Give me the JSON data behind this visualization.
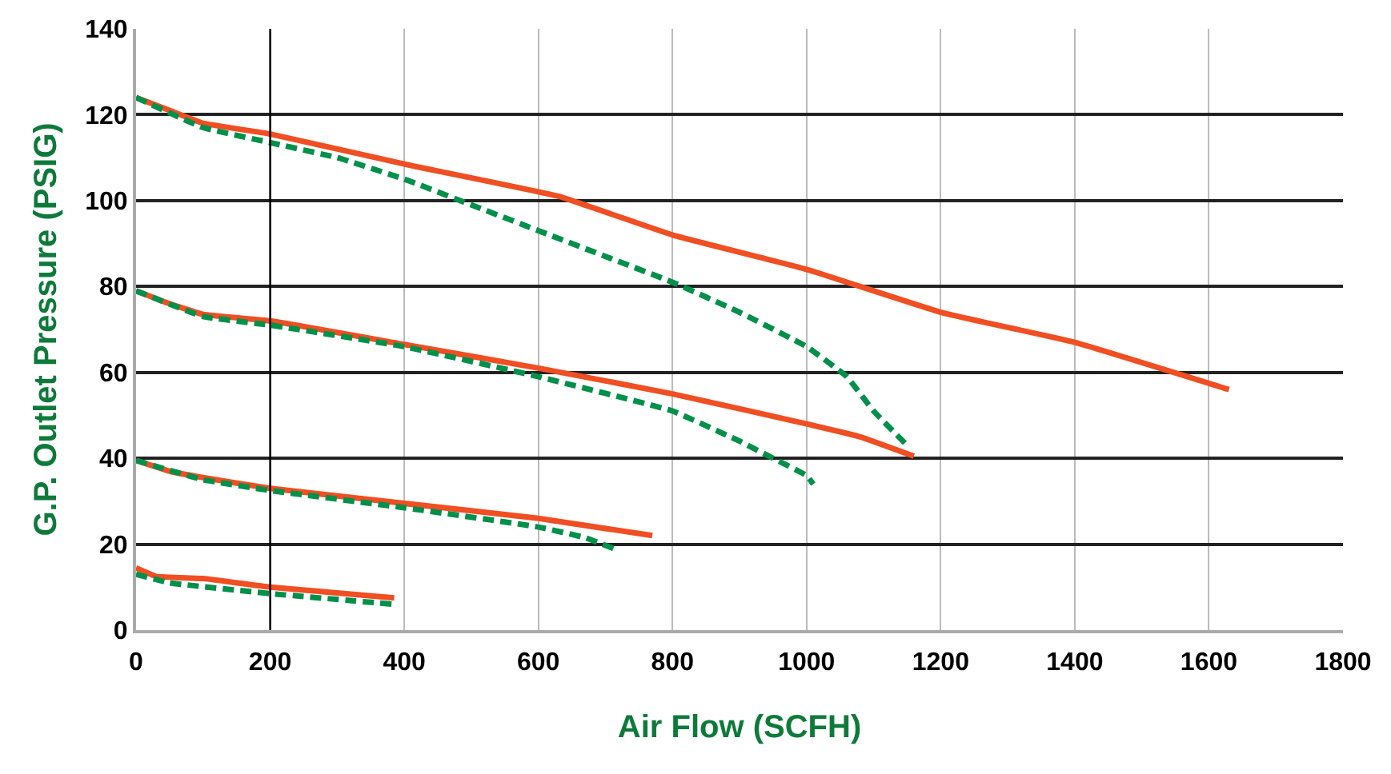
{
  "chart_data": {
    "type": "line",
    "xlabel": "Air Flow (SCFH)",
    "ylabel": "G.P. Outlet Pressure (PSIG)",
    "xlim": [
      0,
      1800
    ],
    "xticks": [
      0,
      200,
      400,
      600,
      800,
      1000,
      1200,
      1400,
      1600,
      1800
    ],
    "ylim": [
      0,
      140
    ],
    "yticks": [
      0,
      20,
      40,
      60,
      80,
      100,
      120,
      140
    ],
    "grid": true,
    "marker": "none",
    "ref_lines": [
      {
        "axis": "x",
        "value": 200,
        "color": "#000000"
      }
    ],
    "series": [
      {
        "color": "#f04e23",
        "line_style": "solid",
        "x": [
          0,
          50,
          100,
          200,
          400,
          630,
          800,
          1000,
          1200,
          1400,
          1630
        ],
        "values": [
          124,
          121,
          118,
          115.5,
          108.5,
          101,
          92,
          84,
          74,
          67,
          56
        ]
      },
      {
        "color": "#00904a",
        "line_style": "dashed",
        "x": [
          0,
          100,
          200,
          300,
          400,
          500,
          600,
          700,
          800,
          900,
          1000,
          1060,
          1100,
          1150
        ],
        "values": [
          124,
          117,
          113.5,
          110,
          105,
          99,
          93,
          87,
          81,
          74,
          66,
          59,
          51,
          43
        ]
      },
      {
        "color": "#f04e23",
        "line_style": "solid",
        "x": [
          0,
          50,
          100,
          200,
          400,
          600,
          800,
          1000,
          1080,
          1160
        ],
        "values": [
          79,
          76,
          73.5,
          72,
          66.5,
          61,
          55,
          48,
          45,
          40.5
        ]
      },
      {
        "color": "#00904a",
        "line_style": "dashed",
        "x": [
          0,
          100,
          200,
          400,
          600,
          800,
          900,
          950,
          1000,
          1010
        ],
        "values": [
          79,
          73,
          71,
          66,
          59,
          51,
          44,
          40,
          36,
          34
        ]
      },
      {
        "color": "#f04e23",
        "line_style": "solid",
        "x": [
          0,
          50,
          100,
          200,
          400,
          600,
          770
        ],
        "values": [
          39.5,
          37,
          35.5,
          33,
          29.5,
          26,
          22
        ]
      },
      {
        "color": "#00904a",
        "line_style": "dashed",
        "x": [
          0,
          100,
          200,
          400,
          600,
          670,
          720
        ],
        "values": [
          39.5,
          35,
          32.5,
          28.5,
          24,
          21.5,
          18.5
        ]
      },
      {
        "color": "#f04e23",
        "line_style": "solid",
        "x": [
          0,
          30,
          100,
          200,
          385
        ],
        "values": [
          14.5,
          12.5,
          12,
          10,
          7.5
        ]
      },
      {
        "color": "#00904a",
        "line_style": "dashed",
        "x": [
          0,
          50,
          200,
          385
        ],
        "values": [
          13,
          11,
          8.5,
          6
        ]
      }
    ]
  }
}
